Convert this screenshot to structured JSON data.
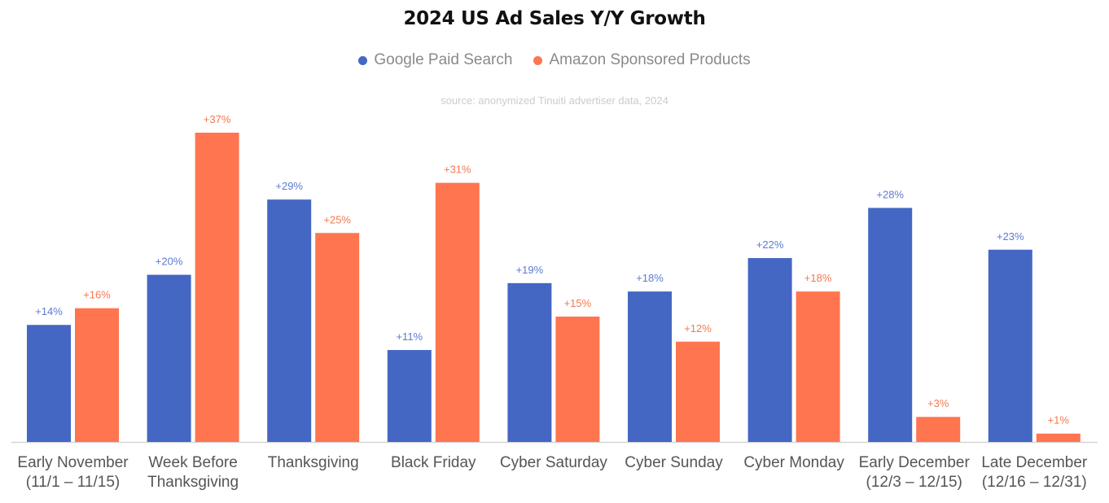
{
  "chart_data": {
    "type": "bar",
    "title": "2024 US Ad Sales Y/Y Growth",
    "subtitle": "source: anonymized Tinuiti advertiser data, 2024",
    "legend_position": "top-center",
    "grid": false,
    "ylim": [
      0,
      40
    ],
    "categories": [
      [
        "Early November",
        "(11/1 – 11/15)"
      ],
      [
        "Week Before",
        "Thanksgiving"
      ],
      [
        "Thanksgiving"
      ],
      [
        "Black Friday"
      ],
      [
        "Cyber Saturday"
      ],
      [
        "Cyber Sunday"
      ],
      [
        "Cyber Monday"
      ],
      [
        "Early December",
        "(12/3 – 12/15)"
      ],
      [
        "Late December",
        "(12/16 – 12/31)"
      ]
    ],
    "series": [
      {
        "name": "Google Paid Search",
        "color": "#4467C4",
        "label_color": "#5B7BD0",
        "values": [
          14,
          20,
          29,
          11,
          19,
          18,
          22,
          28,
          23
        ],
        "labels": [
          "+14%",
          "+20%",
          "+29%",
          "+11%",
          "+19%",
          "+18%",
          "+22%",
          "+28%",
          "+23%"
        ]
      },
      {
        "name": "Amazon Sponsored Products",
        "color": "#FF7550",
        "label_color": "#F5774F",
        "values": [
          16,
          37,
          25,
          31,
          15,
          12,
          18,
          3,
          1
        ],
        "labels": [
          "+16%",
          "+37%",
          "+25%",
          "+31%",
          "+15%",
          "+12%",
          "+18%",
          "+3%",
          "+1%"
        ]
      }
    ]
  }
}
